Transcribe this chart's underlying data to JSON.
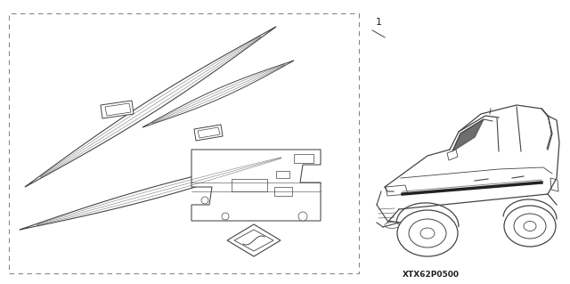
{
  "bg_color": "#ffffff",
  "border_color": "#888888",
  "line_color": "#444444",
  "text_color": "#222222",
  "fig_width": 6.4,
  "fig_height": 3.19,
  "dpi": 100,
  "part_number_label": "1",
  "diagram_code": "XTX62P0500"
}
